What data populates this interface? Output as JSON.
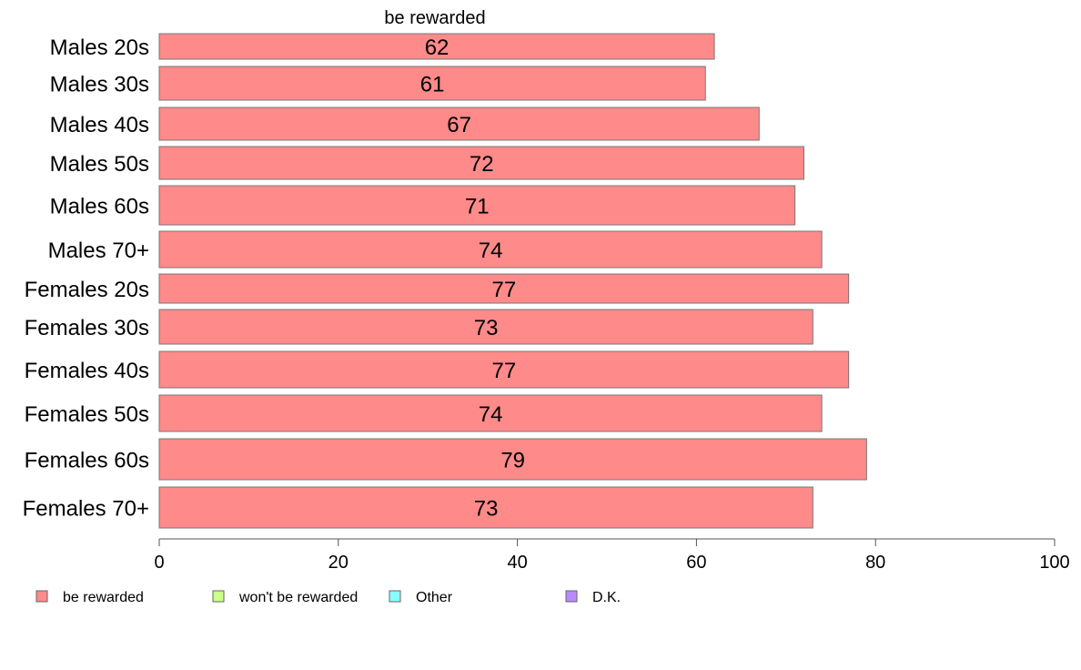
{
  "chart_data": {
    "type": "bar",
    "orientation": "horizontal",
    "stacked": true,
    "top_label": "be rewarded",
    "categories": [
      "Males 20s",
      "Males 30s",
      "Males 40s",
      "Males 50s",
      "Males 60s",
      "Males 70+",
      "Females 20s",
      "Females 30s",
      "Females 40s",
      "Females 50s",
      "Females 60s",
      "Females 70+"
    ],
    "series": [
      {
        "name": "be rewarded",
        "color": "#ff8a8a",
        "values": [
          62,
          61,
          67,
          72,
          71,
          74,
          77,
          73,
          77,
          74,
          79,
          73
        ]
      },
      {
        "name": "won't be rewarded",
        "color": "#ccff88",
        "values": [
          null,
          null,
          null,
          null,
          null,
          null,
          null,
          null,
          null,
          null,
          null,
          null
        ]
      },
      {
        "name": "Other",
        "color": "#88ffff",
        "values": [
          null,
          null,
          null,
          null,
          null,
          null,
          null,
          null,
          null,
          null,
          null,
          null
        ]
      },
      {
        "name": "D.K.",
        "color": "#bb88ff",
        "values": [
          null,
          null,
          null,
          null,
          null,
          null,
          null,
          null,
          null,
          null,
          null,
          null
        ]
      }
    ],
    "data_labels": [
      "62",
      "61",
      "67",
      "72",
      "71",
      "74",
      "77",
      "73",
      "77",
      "74",
      "79",
      "73"
    ],
    "xlim": [
      0,
      100
    ],
    "xticks": [
      0,
      20,
      40,
      60,
      80,
      100
    ],
    "xtick_labels": [
      "0",
      "20",
      "40",
      "60",
      "80",
      "100"
    ],
    "grid": false,
    "legend_position": "bottom"
  }
}
